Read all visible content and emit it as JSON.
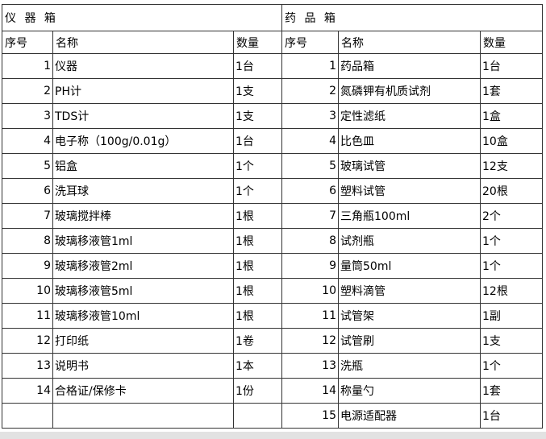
{
  "page": {
    "background": "#ffffff",
    "border_color": "#333333",
    "bottom_bar_color": "#e2e2e2"
  },
  "tables": [
    {
      "title": "仪 器 箱",
      "headers": [
        "序号",
        "名称",
        "数量"
      ],
      "rows": [
        [
          "1",
          "仪器",
          "1台"
        ],
        [
          "2",
          "PH计",
          "1支"
        ],
        [
          "3",
          "TDS计",
          "1支"
        ],
        [
          "4",
          "电子称（100g/0.01g）",
          "1台"
        ],
        [
          "5",
          "铝盒",
          "1个"
        ],
        [
          "6",
          "洗耳球",
          "1个"
        ],
        [
          "7",
          "玻璃搅拌棒",
          "1根"
        ],
        [
          "8",
          "玻璃移液管1ml",
          "1根"
        ],
        [
          "9",
          "玻璃移液管2ml",
          "1根"
        ],
        [
          "10",
          "玻璃移液管5ml",
          "1根"
        ],
        [
          "11",
          "玻璃移液管10ml",
          "1根"
        ],
        [
          "12",
          "打印纸",
          "1卷"
        ],
        [
          "13",
          "说明书",
          "1本"
        ],
        [
          "14",
          "合格证/保修卡",
          "1份"
        ],
        [
          "",
          "",
          ""
        ]
      ]
    },
    {
      "title": "药 品 箱",
      "headers": [
        "序号",
        "名称",
        "数量"
      ],
      "rows": [
        [
          "1",
          "药品箱",
          "1台"
        ],
        [
          "2",
          "氮磷钾有机质试剂",
          "1套"
        ],
        [
          "3",
          "定性滤纸",
          "1盒"
        ],
        [
          "4",
          "比色皿",
          "10盒"
        ],
        [
          "5",
          "玻璃试管",
          "12支"
        ],
        [
          "6",
          "塑料试管",
          "20根"
        ],
        [
          "7",
          "三角瓶100ml",
          "2个"
        ],
        [
          "8",
          "试剂瓶",
          "1个"
        ],
        [
          "9",
          "量筒50ml",
          "1个"
        ],
        [
          "10",
          "塑料滴管",
          "12根"
        ],
        [
          "11",
          "试管架",
          "1副"
        ],
        [
          "12",
          "试管刷",
          "1支"
        ],
        [
          "13",
          "洗瓶",
          "1个"
        ],
        [
          "14",
          "称量勺",
          "1套"
        ],
        [
          "15",
          "电源适配器",
          "1台"
        ]
      ]
    }
  ]
}
